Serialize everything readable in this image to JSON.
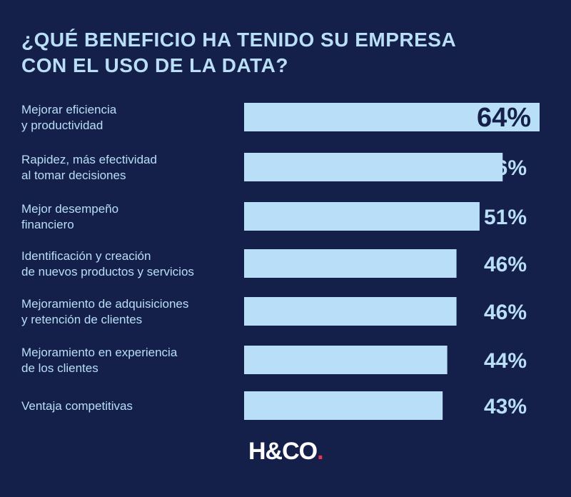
{
  "chart_data": {
    "type": "bar",
    "orientation": "horizontal",
    "title_lines": [
      "¿QUÉ BENEFICIO HA TENIDO SU EMPRESA",
      "CON EL USO DE LA DATA?"
    ],
    "categories": [
      [
        "Mejorar eficiencia",
        "y productividad"
      ],
      [
        "Rapidez, más efectividad",
        "al tomar decisiones"
      ],
      [
        "Mejor desempeño",
        "financiero"
      ],
      [
        "Identificación y creación",
        "de nuevos productos y servicios"
      ],
      [
        "Mejoramiento de adquisiciones",
        "y retención de clientes"
      ],
      [
        "Mejoramiento en experiencia",
        "de los clientes"
      ],
      [
        "Ventaja competitivas"
      ]
    ],
    "values": [
      64,
      56,
      51,
      46,
      46,
      44,
      43
    ],
    "value_labels": [
      "64%",
      "56%",
      "51%",
      "46%",
      "46%",
      "44%",
      "43%"
    ],
    "unit": "%",
    "grid": false,
    "legend": "none"
  },
  "logo": {
    "text": "H&CO",
    "dot": "."
  },
  "colors": {
    "background": "#15204a",
    "bar": "#b9dff8",
    "label": "#b9dff8",
    "value": "#b9dff8",
    "value_inside": "#15204a",
    "logo_dot": "#e8354a"
  }
}
